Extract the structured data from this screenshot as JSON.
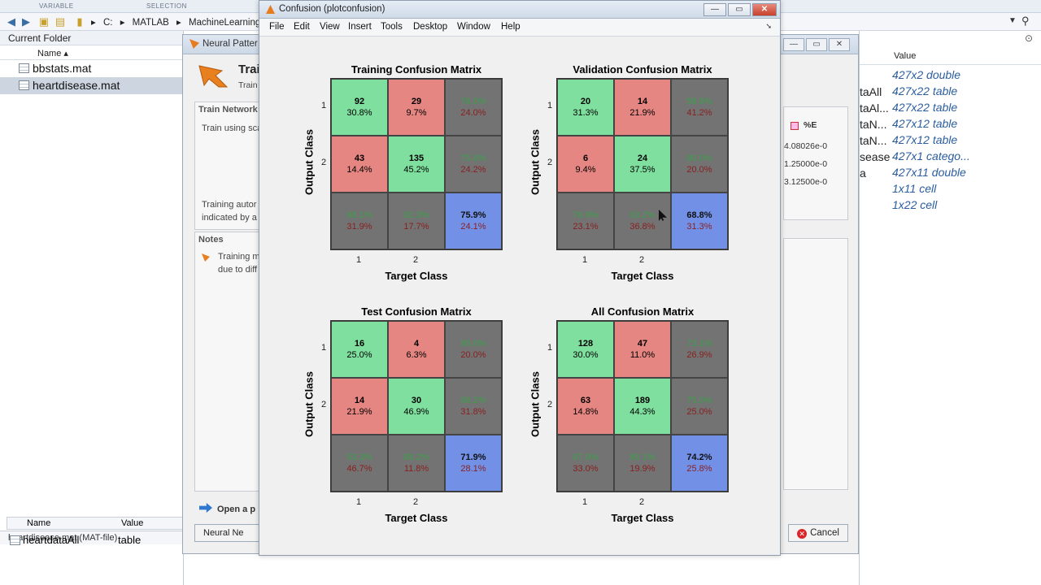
{
  "matlab": {
    "ribbon_sections": [
      "VARIABLE",
      "SELECTION"
    ],
    "path": [
      "C:",
      "MATLAB",
      "MachineLearning"
    ],
    "path_sep": "▸"
  },
  "current_folder": {
    "title": "Current Folder",
    "col_name": "Name ▴",
    "files": [
      {
        "name": "bbstats.mat"
      },
      {
        "name": "heartdisease.mat"
      }
    ],
    "detail_title": "heartdisease.mat  (MAT-file)",
    "detail_cols": [
      "Name",
      "Value"
    ],
    "detail_row": {
      "name": "heartdataAll",
      "value": "table"
    }
  },
  "workspace": {
    "col_value": "Value",
    "name_fragments": [
      "taAll",
      "taAl...",
      "taN...",
      "taN...",
      "sease",
      "a"
    ],
    "values": [
      "427x2 double",
      "427x22 table",
      "427x22 table",
      "427x12 table",
      "427x12 table",
      "427x1 catego...",
      "427x11 double",
      "1x11 cell",
      "1x22 cell"
    ]
  },
  "nn_window": {
    "title": "Neural Patter",
    "heading": "Trai",
    "subheading": "Train",
    "section_train": "Train Network",
    "train_text": "Train using sca",
    "train_auto_1": "Training autor",
    "train_auto_2": "indicated by a",
    "notes_label": "Notes",
    "note_1": "Training m",
    "note_2": "due to diff",
    "right_header": "%E",
    "right_values": [
      "4.08026e-0",
      "1.25000e-0",
      "3.12500e-0"
    ],
    "open_link": "Open a p",
    "nn_button": "Neural Ne",
    "cancel_button": "Cancel"
  },
  "figure": {
    "title": "Confusion (plotconfusion)",
    "menus": [
      "File",
      "Edit",
      "View",
      "Insert",
      "Tools",
      "Desktop",
      "Window",
      "Help"
    ],
    "buttons": {
      "min": "—",
      "max": "▭",
      "close": "✕"
    }
  },
  "chart_data": [
    {
      "type": "table",
      "title": "Training Confusion Matrix",
      "ylabel": "Output Class",
      "xlabel": "Target Class",
      "classes": [
        "1",
        "2"
      ],
      "counts": [
        [
          92,
          29
        ],
        [
          43,
          135
        ]
      ],
      "cell_percents": [
        [
          "30.8%",
          "9.7%"
        ],
        [
          "14.4%",
          "45.2%"
        ]
      ],
      "row_summary": [
        [
          "76.0%",
          "24.0%"
        ],
        [
          "75.8%",
          "24.2%"
        ]
      ],
      "col_summary": [
        [
          "68.1%",
          "31.9%"
        ],
        [
          "82.3%",
          "17.7%"
        ]
      ],
      "overall": [
        "75.9%",
        "24.1%"
      ]
    },
    {
      "type": "table",
      "title": "Validation Confusion Matrix",
      "ylabel": "Output Class",
      "xlabel": "Target Class",
      "classes": [
        "1",
        "2"
      ],
      "counts": [
        [
          20,
          14
        ],
        [
          6,
          24
        ]
      ],
      "cell_percents": [
        [
          "31.3%",
          "21.9%"
        ],
        [
          "9.4%",
          "37.5%"
        ]
      ],
      "row_summary": [
        [
          "58.8%",
          "41.2%"
        ],
        [
          "80.0%",
          "20.0%"
        ]
      ],
      "col_summary": [
        [
          "76.9%",
          "23.1%"
        ],
        [
          "63.2%",
          "36.8%"
        ]
      ],
      "overall": [
        "68.8%",
        "31.3%"
      ]
    },
    {
      "type": "table",
      "title": "Test Confusion Matrix",
      "ylabel": "Output Class",
      "xlabel": "Target Class",
      "classes": [
        "1",
        "2"
      ],
      "counts": [
        [
          16,
          4
        ],
        [
          14,
          30
        ]
      ],
      "cell_percents": [
        [
          "25.0%",
          "6.3%"
        ],
        [
          "21.9%",
          "46.9%"
        ]
      ],
      "row_summary": [
        [
          "80.0%",
          "20.0%"
        ],
        [
          "68.2%",
          "31.8%"
        ]
      ],
      "col_summary": [
        [
          "53.3%",
          "46.7%"
        ],
        [
          "88.2%",
          "11.8%"
        ]
      ],
      "overall": [
        "71.9%",
        "28.1%"
      ]
    },
    {
      "type": "table",
      "title": "All Confusion Matrix",
      "ylabel": "Output Class",
      "xlabel": "Target Class",
      "classes": [
        "1",
        "2"
      ],
      "counts": [
        [
          128,
          47
        ],
        [
          63,
          189
        ]
      ],
      "cell_percents": [
        [
          "30.0%",
          "11.0%"
        ],
        [
          "14.8%",
          "44.3%"
        ]
      ],
      "row_summary": [
        [
          "73.1%",
          "26.9%"
        ],
        [
          "75.0%",
          "25.0%"
        ]
      ],
      "col_summary": [
        [
          "67.0%",
          "33.0%"
        ],
        [
          "80.1%",
          "19.9%"
        ]
      ],
      "overall": [
        "74.2%",
        "25.8%"
      ]
    }
  ]
}
